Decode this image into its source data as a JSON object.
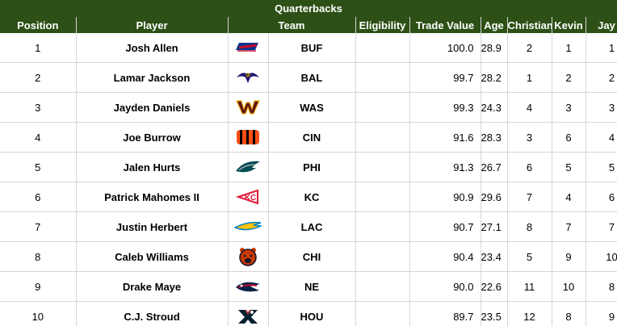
{
  "title": "Quarterbacks",
  "columns": {
    "position": "Position",
    "player": "Player",
    "team": "Team",
    "eligibility": "Eligibility",
    "trade_value": "Trade Value",
    "age": "Age",
    "christian": "Christian",
    "kevin": "Kevin",
    "jay": "Jay K"
  },
  "rows": [
    {
      "position": "1",
      "player": "Josh Allen",
      "team": "BUF",
      "logo": "bills-logo-icon",
      "eligibility": "",
      "trade_value": "100.0",
      "age": "28.9",
      "christian": "2",
      "kevin": "1",
      "jay": "1"
    },
    {
      "position": "2",
      "player": "Lamar Jackson",
      "team": "BAL",
      "logo": "ravens-logo-icon",
      "eligibility": "",
      "trade_value": "99.7",
      "age": "28.2",
      "christian": "1",
      "kevin": "2",
      "jay": "2"
    },
    {
      "position": "3",
      "player": "Jayden Daniels",
      "team": "WAS",
      "logo": "commanders-logo-icon",
      "eligibility": "",
      "trade_value": "99.3",
      "age": "24.3",
      "christian": "4",
      "kevin": "3",
      "jay": "3"
    },
    {
      "position": "4",
      "player": "Joe Burrow",
      "team": "CIN",
      "logo": "bengals-logo-icon",
      "eligibility": "",
      "trade_value": "91.6",
      "age": "28.3",
      "christian": "3",
      "kevin": "6",
      "jay": "4"
    },
    {
      "position": "5",
      "player": "Jalen Hurts",
      "team": "PHI",
      "logo": "eagles-logo-icon",
      "eligibility": "",
      "trade_value": "91.3",
      "age": "26.7",
      "christian": "6",
      "kevin": "5",
      "jay": "5"
    },
    {
      "position": "6",
      "player": "Patrick Mahomes II",
      "team": "KC",
      "logo": "chiefs-logo-icon",
      "eligibility": "",
      "trade_value": "90.9",
      "age": "29.6",
      "christian": "7",
      "kevin": "4",
      "jay": "6"
    },
    {
      "position": "7",
      "player": "Justin Herbert",
      "team": "LAC",
      "logo": "chargers-logo-icon",
      "eligibility": "",
      "trade_value": "90.7",
      "age": "27.1",
      "christian": "8",
      "kevin": "7",
      "jay": "7"
    },
    {
      "position": "8",
      "player": "Caleb Williams",
      "team": "CHI",
      "logo": "bears-logo-icon",
      "eligibility": "",
      "trade_value": "90.4",
      "age": "23.4",
      "christian": "5",
      "kevin": "9",
      "jay": "10"
    },
    {
      "position": "9",
      "player": "Drake Maye",
      "team": "NE",
      "logo": "patriots-logo-icon",
      "eligibility": "",
      "trade_value": "90.0",
      "age": "22.6",
      "christian": "11",
      "kevin": "10",
      "jay": "8"
    },
    {
      "position": "10",
      "player": "C.J. Stroud",
      "team": "HOU",
      "logo": "texans-logo-icon",
      "eligibility": "",
      "trade_value": "89.7",
      "age": "23.5",
      "christian": "12",
      "kevin": "8",
      "jay": "9"
    }
  ],
  "colors": {
    "header_bg": "#2d5016",
    "header_text": "#ffffff",
    "grid_line": "#d5d5d5"
  }
}
